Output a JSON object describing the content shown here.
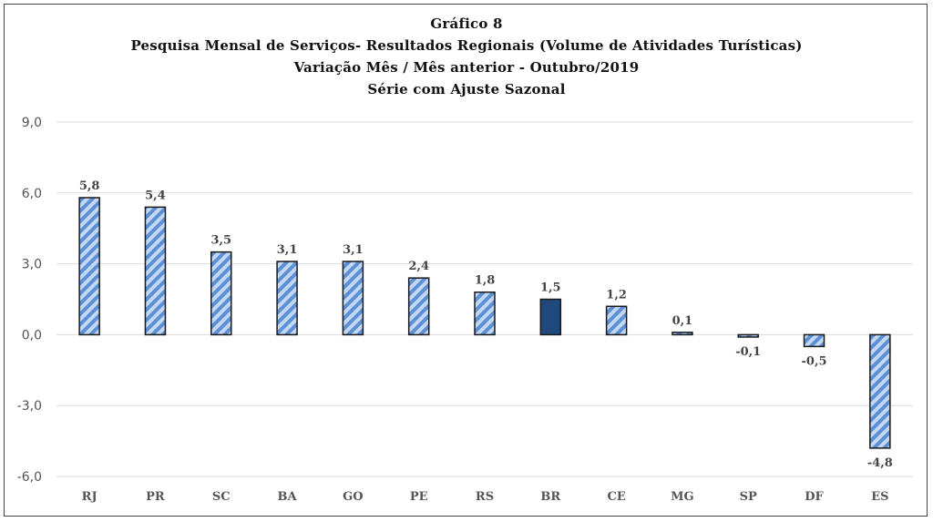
{
  "chart_data": {
    "type": "bar",
    "title": [
      "Gráfico 8",
      "Pesquisa Mensal de Serviços- Resultados Regionais (Volume de Atividades Turísticas)",
      "Variação Mês / Mês anterior - Outubro/2019",
      "Série com Ajuste Sazonal"
    ],
    "categories": [
      "RJ",
      "PR",
      "SC",
      "BA",
      "GO",
      "PE",
      "RS",
      "BR",
      "CE",
      "MG",
      "SP",
      "DF",
      "ES"
    ],
    "values": [
      5.8,
      5.4,
      3.5,
      3.1,
      3.1,
      2.4,
      1.8,
      1.5,
      1.2,
      0.1,
      -0.1,
      -0.5,
      -4.8
    ],
    "data_labels": [
      "5,8",
      "5,4",
      "3,5",
      "3,1",
      "3,1",
      "2,4",
      "1,8",
      "1,5",
      "1,2",
      "0,1",
      "-0,1",
      "-0,5",
      "-4,8"
    ],
    "ylim": [
      -6,
      9
    ],
    "yticks": [
      9,
      6,
      3,
      0,
      -3,
      -6
    ],
    "ytick_labels": [
      "9,0",
      "6,0",
      "3,0",
      "0,0",
      "-3,0",
      "-6,0"
    ],
    "highlight_category": "BR",
    "colors": {
      "hatch_light": "#c5d8f2",
      "hatch_dark": "#5b8fd6",
      "highlight_fill": "#1f497d",
      "bar_border": "#1a1a1a",
      "grid": "#d9d9d9"
    },
    "grid": true,
    "legend": "none"
  }
}
